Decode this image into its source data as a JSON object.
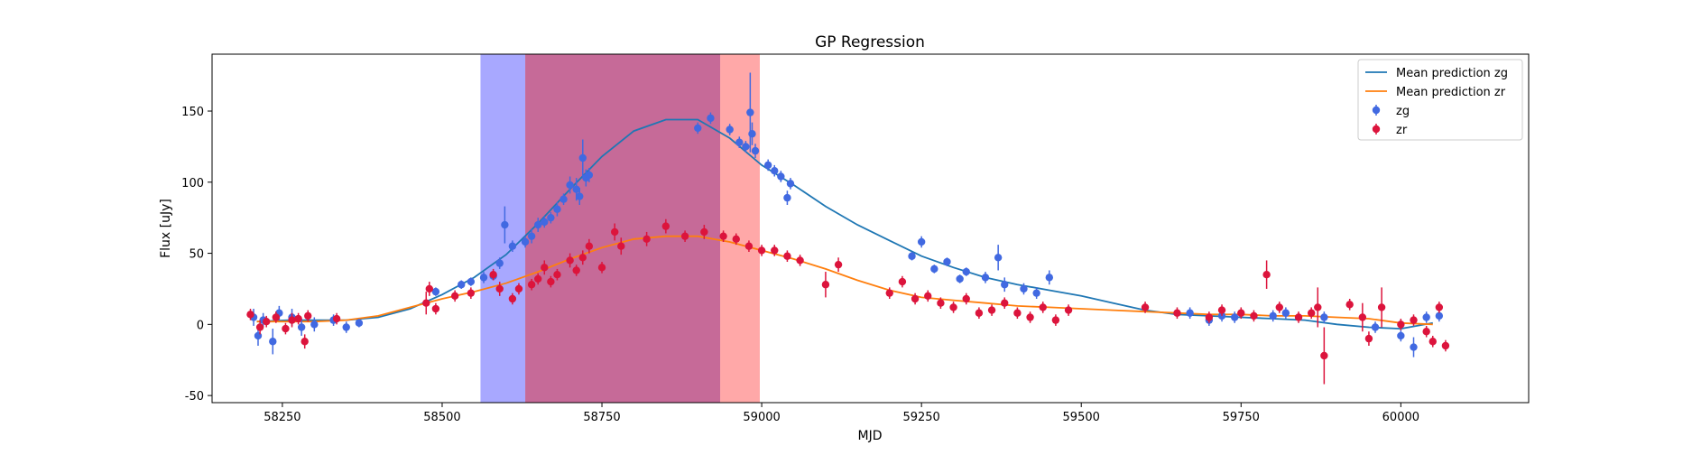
{
  "chart_data": {
    "type": "scatter",
    "title": "GP Regression",
    "xlabel": "MJD",
    "ylabel": "Flux [uJy]",
    "xlim": [
      58140,
      60200
    ],
    "ylim": [
      -55,
      190
    ],
    "xticks": [
      58250,
      58500,
      58750,
      59000,
      59250,
      59500,
      59750,
      60000
    ],
    "yticks": [
      -50,
      0,
      50,
      100,
      150
    ],
    "grid": false,
    "legend_position": "top-right",
    "shaded_regions": [
      {
        "x0": 58560,
        "x1": 58630,
        "color": "#0000ff",
        "alpha": 0.34
      },
      {
        "x0": 58630,
        "x1": 58935,
        "color": "#b03070",
        "alpha": 0.72
      },
      {
        "x0": 58935,
        "x1": 58997,
        "color": "#ff0000",
        "alpha": 0.34
      }
    ],
    "series": [
      {
        "name": "Mean prediction zg",
        "kind": "line",
        "color": "#1f77b4",
        "x": [
          58210,
          58260,
          58300,
          58350,
          58400,
          58450,
          58500,
          58550,
          58600,
          58650,
          58700,
          58750,
          58800,
          58850,
          58900,
          58950,
          59000,
          59050,
          59100,
          59150,
          59200,
          59250,
          59300,
          59350,
          59400,
          59450,
          59500,
          59550,
          59600,
          59650,
          59700,
          59750,
          59800,
          59850,
          59900,
          59950,
          60000,
          60050
        ],
        "y": [
          2,
          3,
          3,
          3,
          5,
          11,
          21,
          33,
          49,
          71,
          95,
          118,
          136,
          144,
          144,
          131,
          112,
          98,
          83,
          70,
          59,
          48,
          40,
          33,
          28,
          24,
          20,
          15,
          10,
          7,
          6,
          5,
          4,
          3,
          0,
          -2,
          -3,
          1
        ]
      },
      {
        "name": "Mean prediction zr",
        "kind": "line",
        "color": "#ff7f0e",
        "x": [
          58210,
          58260,
          58300,
          58350,
          58400,
          58450,
          58500,
          58550,
          58600,
          58650,
          58700,
          58750,
          58800,
          58850,
          58900,
          58950,
          59000,
          59050,
          59100,
          59150,
          59200,
          59250,
          59300,
          59350,
          59400,
          59450,
          59500,
          59550,
          59600,
          59650,
          59700,
          59750,
          59800,
          59850,
          59900,
          59950,
          60000,
          60050
        ],
        "y": [
          2,
          2,
          2,
          3,
          6,
          12,
          18,
          23,
          29,
          37,
          46,
          54,
          60,
          62,
          62,
          58,
          52,
          46,
          39,
          31,
          24,
          19,
          17,
          15,
          13,
          12,
          11,
          10,
          9,
          8,
          7,
          7,
          6,
          6,
          5,
          4,
          1,
          0
        ]
      },
      {
        "name": "zg",
        "kind": "errorbar",
        "color": "#4169e1",
        "x": [
          58205,
          58212,
          58220,
          58235,
          58245,
          58265,
          58280,
          58300,
          58330,
          58350,
          58370,
          58490,
          58530,
          58545,
          58565,
          58580,
          58590,
          58598,
          58610,
          58630,
          58640,
          58650,
          58660,
          58670,
          58680,
          58690,
          58700,
          58710,
          58715,
          58720,
          58725,
          58730,
          58900,
          58920,
          58950,
          58965,
          58975,
          58982,
          58985,
          58990,
          59010,
          59020,
          59030,
          59040,
          59045,
          59235,
          59250,
          59270,
          59290,
          59310,
          59320,
          59350,
          59370,
          59380,
          59410,
          59430,
          59450,
          59670,
          59700,
          59720,
          59740,
          59800,
          59820,
          59880,
          59960,
          60000,
          60020,
          60040,
          60060
        ],
        "y": [
          5,
          -8,
          3,
          -12,
          8,
          5,
          -2,
          0,
          3,
          -2,
          1,
          23,
          28,
          30,
          33,
          34,
          43,
          70,
          55,
          58,
          62,
          70,
          72,
          75,
          81,
          88,
          98,
          95,
          90,
          117,
          103,
          105,
          138,
          145,
          137,
          128,
          125,
          149,
          134,
          122,
          112,
          108,
          104,
          89,
          99,
          48,
          58,
          39,
          44,
          32,
          37,
          33,
          47,
          28,
          25,
          22,
          33,
          8,
          3,
          6,
          5,
          6,
          8,
          5,
          -2,
          -8,
          -16,
          5,
          6
        ],
        "err": [
          6,
          7,
          5,
          9,
          5,
          6,
          6,
          5,
          4,
          4,
          3,
          3,
          3,
          3,
          4,
          3,
          4,
          13,
          4,
          4,
          5,
          5,
          4,
          4,
          5,
          4,
          6,
          8,
          6,
          13,
          6,
          5,
          4,
          4,
          4,
          4,
          4,
          28,
          8,
          5,
          4,
          4,
          4,
          5,
          4,
          3,
          4,
          3,
          3,
          3,
          3,
          4,
          9,
          5,
          4,
          4,
          5,
          4,
          4,
          4,
          4,
          4,
          4,
          4,
          4,
          4,
          7,
          4,
          4
        ]
      },
      {
        "name": "zr",
        "kind": "errorbar",
        "color": "#dc143c",
        "x": [
          58200,
          58215,
          58225,
          58240,
          58255,
          58265,
          58275,
          58285,
          58290,
          58335,
          58475,
          58480,
          58490,
          58520,
          58545,
          58580,
          58590,
          58610,
          58620,
          58640,
          58650,
          58660,
          58670,
          58680,
          58700,
          58710,
          58720,
          58730,
          58750,
          58770,
          58780,
          58820,
          58850,
          58880,
          58910,
          58940,
          58960,
          58980,
          59000,
          59020,
          59040,
          59060,
          59100,
          59120,
          59200,
          59220,
          59240,
          59260,
          59280,
          59300,
          59320,
          59340,
          59360,
          59380,
          59400,
          59420,
          59440,
          59460,
          59480,
          59600,
          59650,
          59700,
          59720,
          59750,
          59770,
          59790,
          59810,
          59840,
          59860,
          59870,
          59880,
          59920,
          59940,
          59950,
          59970,
          60000,
          60020,
          60040,
          60050,
          60060,
          60070
        ],
        "y": [
          7,
          -2,
          2,
          5,
          -3,
          3,
          4,
          -12,
          6,
          4,
          15,
          25,
          11,
          20,
          22,
          35,
          25,
          18,
          25,
          28,
          32,
          40,
          30,
          35,
          45,
          38,
          47,
          55,
          40,
          65,
          55,
          60,
          69,
          62,
          65,
          62,
          60,
          55,
          52,
          52,
          48,
          45,
          28,
          42,
          22,
          30,
          18,
          20,
          15,
          12,
          18,
          8,
          10,
          15,
          8,
          5,
          12,
          3,
          10,
          12,
          8,
          5,
          10,
          8,
          6,
          35,
          12,
          5,
          8,
          12,
          -22,
          14,
          5,
          -10,
          12,
          0,
          3,
          -5,
          -12,
          12,
          -15
        ],
        "err": [
          4,
          5,
          4,
          4,
          4,
          5,
          4,
          5,
          4,
          4,
          8,
          5,
          4,
          4,
          4,
          4,
          5,
          4,
          4,
          4,
          4,
          5,
          4,
          4,
          5,
          4,
          5,
          5,
          4,
          6,
          6,
          5,
          5,
          4,
          5,
          4,
          4,
          4,
          4,
          4,
          4,
          4,
          9,
          5,
          4,
          4,
          4,
          4,
          4,
          4,
          4,
          4,
          4,
          4,
          4,
          4,
          4,
          4,
          4,
          4,
          4,
          4,
          4,
          4,
          4,
          10,
          4,
          4,
          4,
          14,
          20,
          4,
          10,
          5,
          14,
          4,
          4,
          4,
          4,
          4,
          4
        ]
      }
    ]
  }
}
